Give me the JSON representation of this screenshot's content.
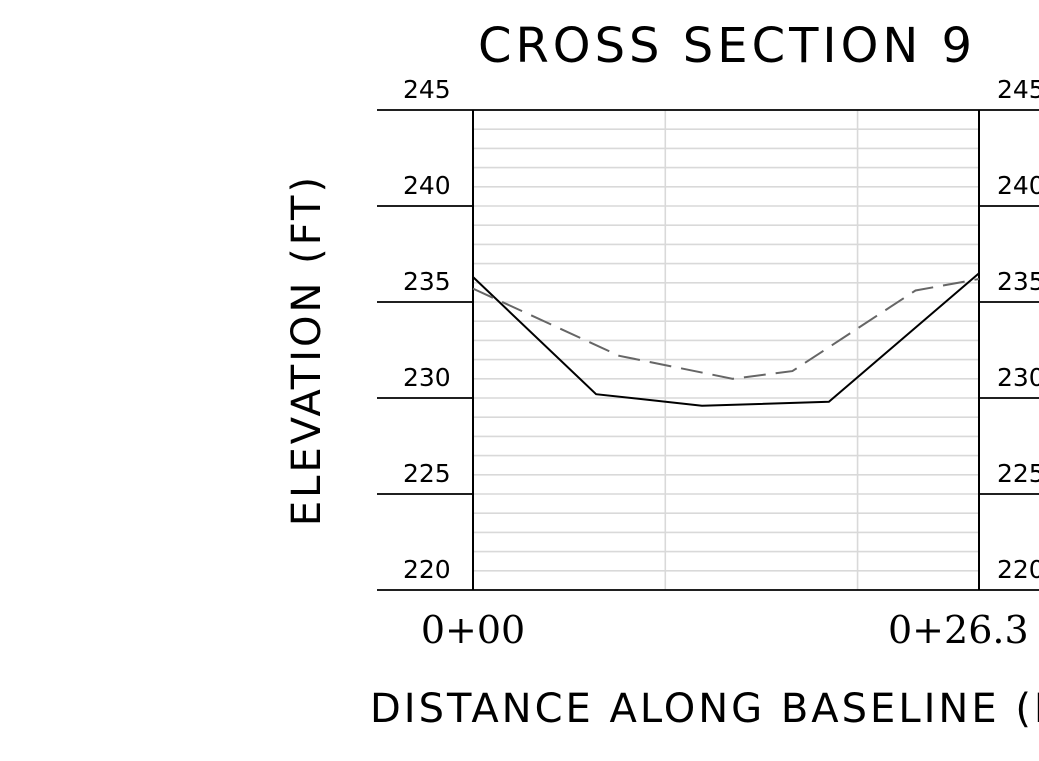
{
  "chart_data": {
    "type": "line",
    "title": "CROSS SECTION 9",
    "xlabel": "DISTANCE ALONG BASELINE (FT)",
    "ylabel": "ELEVATION (FT)",
    "xlim": [
      0,
      26.3
    ],
    "ylim": [
      220,
      245
    ],
    "x_tick_labels": [
      "0+00",
      "0+26.3"
    ],
    "y_ticks": [
      245,
      240,
      235,
      230,
      225,
      220
    ],
    "y_tick_labels": [
      "245",
      "240",
      "235",
      "230",
      "225",
      "220"
    ],
    "grid": true,
    "series": [
      {
        "style": "solid",
        "color": "#000000",
        "points": [
          [
            0,
            236.3
          ],
          [
            6.4,
            230.2
          ],
          [
            11.9,
            229.6
          ],
          [
            18.5,
            229.8
          ],
          [
            26.3,
            236.5
          ]
        ]
      },
      {
        "style": "dashed",
        "color": "#666666",
        "points": [
          [
            0,
            235.7
          ],
          [
            7.6,
            232.2
          ],
          [
            13.5,
            231.0
          ],
          [
            16.6,
            231.4
          ],
          [
            23.0,
            235.6
          ],
          [
            26.3,
            236.2
          ]
        ]
      }
    ]
  }
}
